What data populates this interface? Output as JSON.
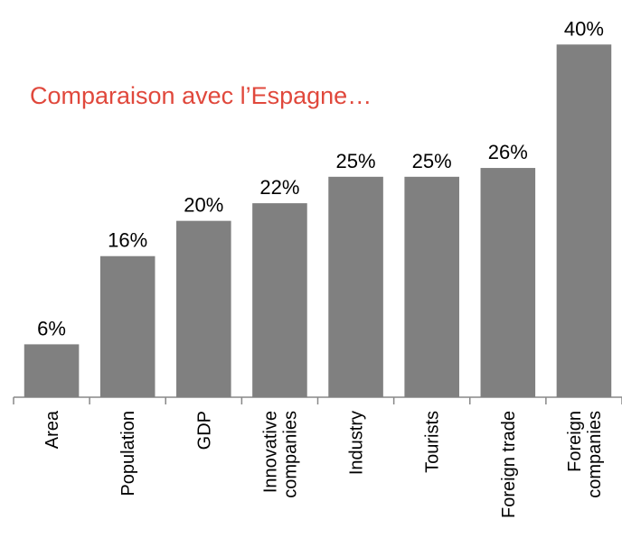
{
  "chart_data": {
    "type": "bar",
    "title": "Comparaison avec l’Espagne…",
    "categories": [
      "Area",
      "Population",
      "GDP",
      "Innovative companies",
      "Industry",
      "Tourists",
      "Foreign trade",
      "Foreign companies"
    ],
    "values": [
      6,
      16,
      20,
      22,
      25,
      25,
      26,
      40
    ],
    "value_labels": [
      "6%",
      "16%",
      "20%",
      "22%",
      "25%",
      "25%",
      "26%",
      "40%"
    ],
    "color": "#808080",
    "ylim": [
      0,
      43
    ]
  }
}
